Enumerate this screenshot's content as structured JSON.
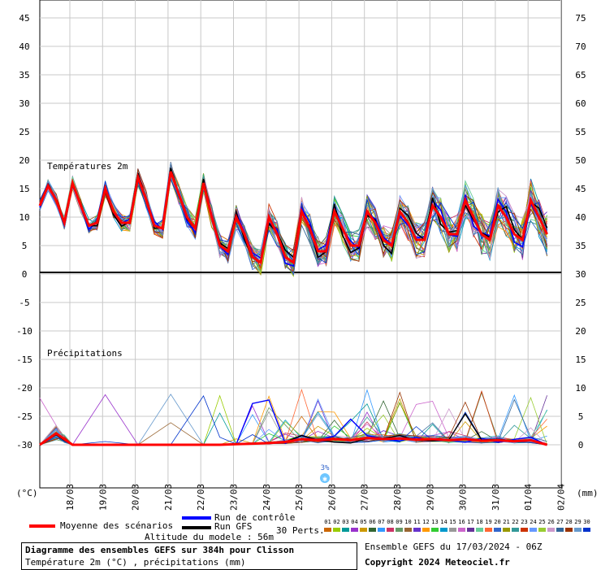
{
  "chart_data": {
    "type": "line",
    "categories": [
      "18/03",
      "19/03",
      "20/03",
      "21/03",
      "22/03",
      "23/03",
      "24/03",
      "25/03",
      "26/03",
      "27/03",
      "28/03",
      "29/03",
      "30/03",
      "31/03",
      "01/04",
      "02/04"
    ],
    "left_axis_ticks": [
      "45",
      "40",
      "35",
      "30",
      "25",
      "20",
      "15",
      "10",
      "5",
      "0",
      "-5",
      "-10",
      "-15",
      "-20",
      "-25",
      "-30"
    ],
    "right_axis_ticks": [
      "75",
      "70",
      "65",
      "60",
      "55",
      "50",
      "45",
      "40",
      "35",
      "30",
      "25",
      "20",
      "15",
      "10",
      "5",
      "0"
    ],
    "left_unit": "(°C)",
    "right_unit": "(mm)",
    "panel_temp_label": "Températures 2m",
    "panel_precip_label": "Précipitations",
    "snow_label": "3%",
    "temperature_mean": {
      "name": "Moyenne des scénarios",
      "color": "#ff0000",
      "x": [
        0,
        0.25,
        0.5,
        0.75,
        1,
        1.25,
        1.5,
        1.75,
        2,
        2.25,
        2.5,
        2.75,
        3,
        3.25,
        3.5,
        3.75,
        4,
        4.25,
        4.5,
        4.75,
        5,
        5.25,
        5.5,
        5.75,
        6,
        6.25,
        6.5,
        6.75,
        7,
        7.25,
        7.5,
        7.75,
        8,
        8.25,
        8.5,
        8.75,
        9,
        9.25,
        9.5,
        9.75,
        10,
        10.25,
        10.5,
        10.75,
        11,
        11.25,
        11.5,
        11.75,
        12,
        12.25,
        12.5,
        12.75,
        13,
        13.25,
        13.5,
        13.75,
        14,
        14.25,
        14.5,
        14.75,
        15,
        15.25,
        15.5
      ],
      "values": [
        12,
        15.5,
        13,
        9,
        16,
        12,
        8.5,
        9,
        15,
        11,
        9,
        9,
        17,
        13,
        8.5,
        8,
        18,
        14,
        10,
        8,
        16,
        10,
        5,
        4,
        10,
        7,
        3,
        2,
        10,
        7,
        3,
        2,
        11,
        8,
        4,
        4,
        11,
        8,
        5,
        5,
        11,
        9,
        6,
        5,
        11,
        9,
        6,
        6,
        12,
        10,
        7,
        7,
        13,
        10,
        7,
        6,
        12,
        10,
        7,
        6,
        13,
        10,
        7
      ]
    },
    "precip_mean": {
      "color": "#ff0000",
      "x": [
        0,
        0.5,
        0.75,
        1,
        2,
        3,
        4,
        5,
        5.5,
        6,
        6.5,
        7,
        7.5,
        8,
        8.5,
        9,
        9.5,
        10,
        10.5,
        11,
        11.5,
        12,
        12.5,
        13,
        13.5,
        14,
        14.5,
        15,
        15.5
      ],
      "values": [
        0,
        2,
        1,
        0,
        0,
        0,
        0,
        0,
        0,
        0.1,
        0.2,
        0.3,
        0.5,
        1,
        0.8,
        1,
        0.8,
        1.2,
        1,
        1.1,
        0.9,
        1,
        0.8,
        1,
        0.7,
        0.8,
        0.6,
        0.8,
        0
      ]
    },
    "member_count": 30,
    "legend": {
      "mean_label": "Moyenne des scénarios",
      "control_label": "Run de contrôle",
      "gfs_label": "Run GFS",
      "perts_label": "30 Perts.",
      "members": [
        "01",
        "02",
        "03",
        "04",
        "05",
        "06",
        "07",
        "08",
        "09",
        "10",
        "11",
        "12",
        "13",
        "14",
        "15",
        "16",
        "17",
        "18",
        "19",
        "20",
        "21",
        "22",
        "23",
        "24",
        "25",
        "26",
        "27",
        "28",
        "29",
        "30"
      ],
      "member_colors": [
        "#cc6600",
        "#99cc00",
        "#009999",
        "#9933cc",
        "#cc9900",
        "#336633",
        "#3399ff",
        "#cc3366",
        "#669966",
        "#996633",
        "#6633cc",
        "#ff9900",
        "#33cc33",
        "#0099cc",
        "#999999",
        "#cc66cc",
        "#663399",
        "#66cc99",
        "#ff6633",
        "#3366cc",
        "#999900",
        "#339999",
        "#cc3300",
        "#6699ff",
        "#99cc33",
        "#cc99cc",
        "#336699",
        "#993300",
        "#6699cc",
        "#0033cc"
      ]
    }
  },
  "info": {
    "altitude": "Altitude du modele : 56m",
    "title": "Diagramme des ensembles GEFS sur 384h pour Clisson",
    "subtitle": "Température 2m (°C) , précipitations (mm)",
    "ensemble": "Ensemble GEFS du 17/03/2024 - 06Z",
    "copyright": "Copyright 2024 Meteociel.fr"
  }
}
